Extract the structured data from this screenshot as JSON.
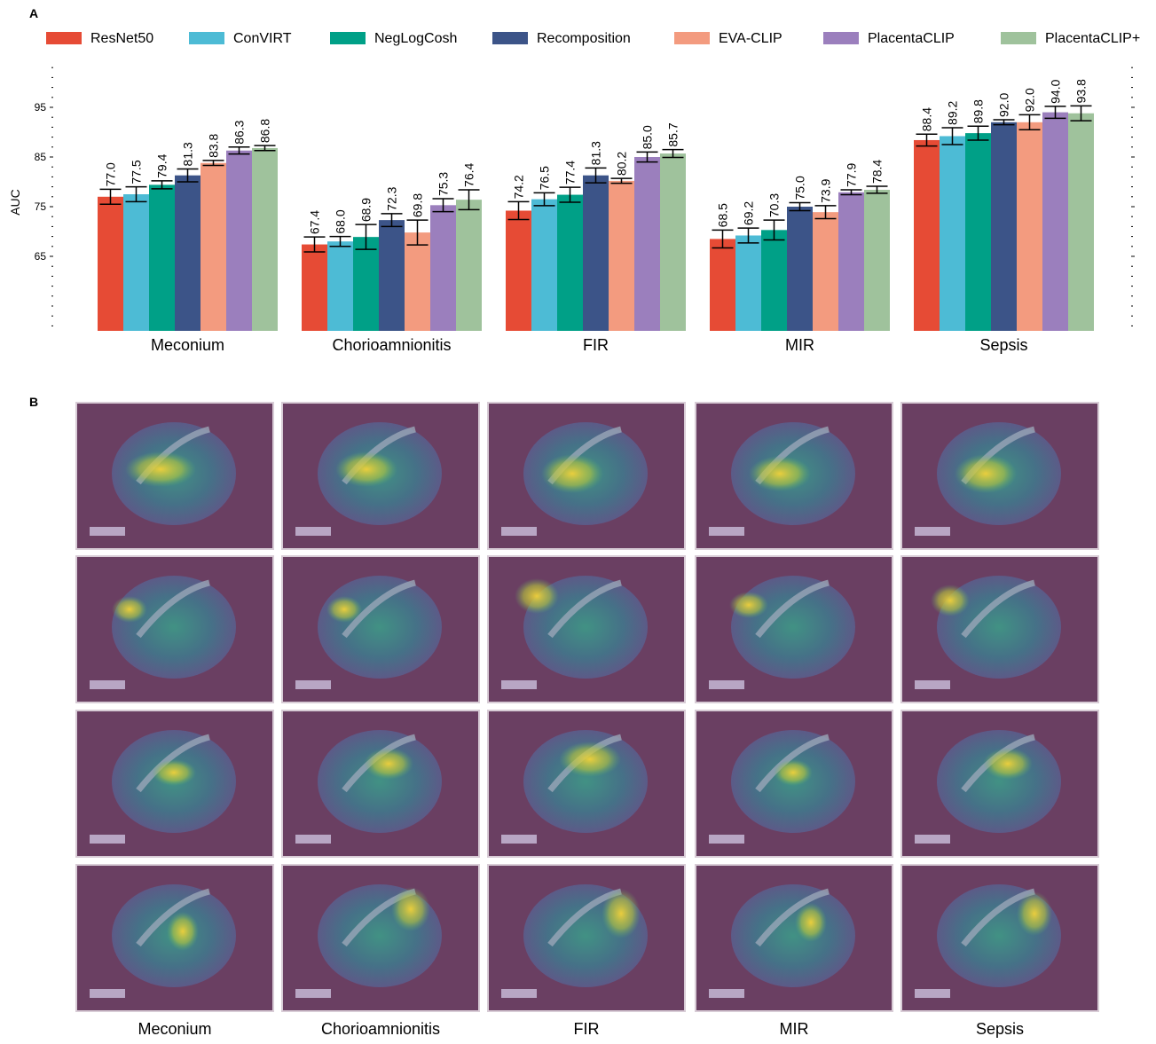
{
  "chart_data": {
    "type": "bar",
    "panel_label": "A",
    "y_label": "AUC",
    "categories": [
      "Meconium",
      "Chorioamnionitis",
      "FIR",
      "MIR",
      "Sepsis"
    ],
    "ylim": [
      50,
      105
    ],
    "yticks": [
      65,
      75,
      85,
      95
    ],
    "minor_yticks": [
      51,
      53,
      55,
      57,
      59,
      61,
      63,
      67,
      69,
      71,
      73,
      77,
      79,
      81,
      83,
      87,
      89,
      91,
      93,
      97,
      99,
      101,
      103
    ],
    "legend": "top",
    "series": [
      {
        "name": "ResNet50",
        "color": "#e64b35",
        "values": [
          77.0,
          67.4,
          74.2,
          68.5,
          88.4
        ],
        "value_labels": [
          "77.0",
          "67.4",
          "74.2",
          "68.5",
          "88.4"
        ],
        "errors": [
          1.5,
          1.5,
          1.8,
          1.8,
          1.2
        ]
      },
      {
        "name": "ConVIRT",
        "color": "#4dbbd5",
        "values": [
          77.5,
          68.0,
          76.5,
          69.2,
          89.2
        ],
        "value_labels": [
          "77.5",
          "68.0",
          "76.5",
          "69.2",
          "89.2"
        ],
        "errors": [
          1.5,
          1.0,
          1.3,
          1.5,
          1.7
        ]
      },
      {
        "name": "NegLogCosh",
        "color": "#00a087",
        "values": [
          79.4,
          68.9,
          77.4,
          70.3,
          89.8
        ],
        "value_labels": [
          "79.4",
          "68.9",
          "77.4",
          "70.3",
          "89.8"
        ],
        "errors": [
          0.8,
          2.5,
          1.5,
          2.0,
          1.4
        ]
      },
      {
        "name": "Recomposition",
        "color": "#3c5488",
        "values": [
          81.3,
          72.3,
          81.3,
          75.0,
          92.0
        ],
        "value_labels": [
          "81.3",
          "72.3",
          "81.3",
          "75.0",
          "92.0"
        ],
        "errors": [
          1.3,
          1.3,
          1.5,
          0.8,
          0.5
        ]
      },
      {
        "name": "EVA-CLIP",
        "color": "#f39b7f",
        "values": [
          83.8,
          69.8,
          80.2,
          73.9,
          92.0
        ],
        "value_labels": [
          "83.8",
          "69.8",
          "80.2",
          "73.9",
          "92.0"
        ],
        "errors": [
          0.5,
          2.5,
          0.5,
          1.3,
          1.5
        ]
      },
      {
        "name": "PlacentaCLIP",
        "color": "#9b7fbd",
        "values": [
          86.3,
          75.3,
          85.0,
          77.9,
          94.0
        ],
        "value_labels": [
          "86.3",
          "75.3",
          "85.0",
          "77.9",
          "94.0"
        ],
        "errors": [
          0.7,
          1.3,
          1.0,
          0.5,
          1.2
        ]
      },
      {
        "name": "PlacentaCLIP+",
        "color": "#9fc29c",
        "values": [
          86.8,
          76.4,
          85.7,
          78.4,
          93.8
        ],
        "value_labels": [
          "86.8",
          "76.4",
          "85.7",
          "78.4",
          "93.8"
        ],
        "errors": [
          0.5,
          2.0,
          0.8,
          0.7,
          1.5
        ]
      }
    ]
  },
  "panel_b": {
    "panel_label": "B",
    "columns": [
      "Meconium",
      "Chorioamnionitis",
      "FIR",
      "MIR",
      "Sepsis"
    ]
  }
}
